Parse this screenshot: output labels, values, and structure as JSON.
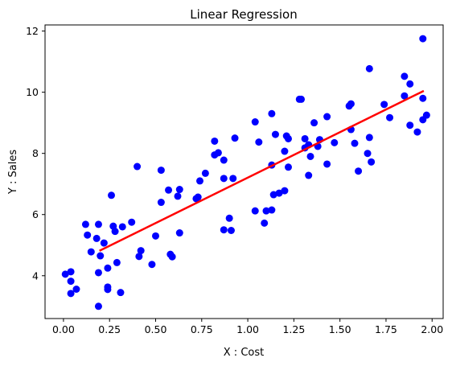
{
  "chart_data": {
    "type": "scatter",
    "title": "Linear Regression",
    "xlabel": "X : Cost",
    "ylabel": "Y : Sales",
    "xlim": [
      -0.1,
      2.06
    ],
    "ylim": [
      2.6,
      12.2
    ],
    "xticks": [
      0.0,
      0.25,
      0.5,
      0.75,
      1.0,
      1.25,
      1.5,
      1.75,
      2.0
    ],
    "xtick_labels": [
      "0.00",
      "0.25",
      "0.50",
      "0.75",
      "1.00",
      "1.25",
      "1.50",
      "1.75",
      "2.00"
    ],
    "yticks": [
      4,
      6,
      8,
      10,
      12
    ],
    "ytick_labels": [
      "4",
      "6",
      "8",
      "10",
      "12"
    ],
    "grid": false,
    "colors": {
      "points": "#0000ff",
      "regression_line": "#ff0000",
      "axes": "#000000"
    },
    "series": [
      {
        "kind": "scatter",
        "points": [
          [
            0.01,
            4.05
          ],
          [
            0.04,
            4.13
          ],
          [
            0.04,
            3.82
          ],
          [
            0.04,
            3.42
          ],
          [
            0.07,
            3.56
          ],
          [
            0.12,
            5.68
          ],
          [
            0.13,
            5.33
          ],
          [
            0.15,
            4.78
          ],
          [
            0.18,
            5.22
          ],
          [
            0.19,
            5.68
          ],
          [
            0.19,
            4.1
          ],
          [
            0.19,
            3.0
          ],
          [
            0.2,
            4.65
          ],
          [
            0.22,
            5.07
          ],
          [
            0.24,
            3.63
          ],
          [
            0.24,
            3.55
          ],
          [
            0.24,
            4.25
          ],
          [
            0.26,
            6.63
          ],
          [
            0.27,
            5.62
          ],
          [
            0.28,
            5.45
          ],
          [
            0.29,
            4.43
          ],
          [
            0.31,
            3.45
          ],
          [
            0.32,
            5.6
          ],
          [
            0.37,
            5.75
          ],
          [
            0.4,
            7.57
          ],
          [
            0.41,
            4.63
          ],
          [
            0.42,
            4.82
          ],
          [
            0.48,
            4.37
          ],
          [
            0.5,
            5.3
          ],
          [
            0.53,
            7.45
          ],
          [
            0.53,
            6.4
          ],
          [
            0.57,
            6.8
          ],
          [
            0.58,
            4.7
          ],
          [
            0.59,
            4.62
          ],
          [
            0.62,
            6.6
          ],
          [
            0.63,
            6.82
          ],
          [
            0.63,
            5.4
          ],
          [
            0.72,
            6.52
          ],
          [
            0.73,
            6.57
          ],
          [
            0.74,
            7.1
          ],
          [
            0.77,
            7.35
          ],
          [
            0.82,
            8.4
          ],
          [
            0.82,
            7.95
          ],
          [
            0.84,
            8.02
          ],
          [
            0.87,
            7.78
          ],
          [
            0.87,
            7.18
          ],
          [
            0.87,
            5.5
          ],
          [
            0.9,
            5.88
          ],
          [
            0.91,
            5.48
          ],
          [
            0.92,
            7.18
          ],
          [
            0.93,
            8.5
          ],
          [
            1.04,
            9.03
          ],
          [
            1.04,
            6.12
          ],
          [
            1.06,
            8.37
          ],
          [
            1.09,
            5.72
          ],
          [
            1.1,
            6.12
          ],
          [
            1.13,
            6.15
          ],
          [
            1.13,
            7.62
          ],
          [
            1.13,
            9.3
          ],
          [
            1.14,
            6.65
          ],
          [
            1.15,
            8.62
          ],
          [
            1.17,
            6.7
          ],
          [
            1.2,
            8.07
          ],
          [
            1.2,
            6.78
          ],
          [
            1.21,
            8.57
          ],
          [
            1.22,
            8.48
          ],
          [
            1.22,
            7.55
          ],
          [
            1.28,
            9.77
          ],
          [
            1.29,
            9.77
          ],
          [
            1.31,
            8.48
          ],
          [
            1.31,
            8.18
          ],
          [
            1.33,
            8.28
          ],
          [
            1.33,
            7.28
          ],
          [
            1.34,
            7.9
          ],
          [
            1.36,
            9.0
          ],
          [
            1.38,
            8.23
          ],
          [
            1.39,
            8.45
          ],
          [
            1.43,
            9.2
          ],
          [
            1.43,
            7.65
          ],
          [
            1.47,
            8.35
          ],
          [
            1.55,
            9.55
          ],
          [
            1.56,
            9.62
          ],
          [
            1.56,
            8.78
          ],
          [
            1.58,
            8.33
          ],
          [
            1.6,
            7.42
          ],
          [
            1.65,
            8.0
          ],
          [
            1.66,
            8.52
          ],
          [
            1.66,
            10.77
          ],
          [
            1.67,
            7.72
          ],
          [
            1.74,
            9.6
          ],
          [
            1.77,
            9.17
          ],
          [
            1.85,
            10.52
          ],
          [
            1.85,
            9.88
          ],
          [
            1.88,
            8.92
          ],
          [
            1.88,
            10.27
          ],
          [
            1.92,
            8.7
          ],
          [
            1.95,
            9.8
          ],
          [
            1.95,
            9.1
          ],
          [
            1.95,
            11.75
          ],
          [
            1.97,
            9.25
          ]
        ]
      },
      {
        "kind": "line",
        "points": [
          [
            0.2,
            4.83
          ],
          [
            1.95,
            10.03
          ]
        ]
      }
    ]
  }
}
